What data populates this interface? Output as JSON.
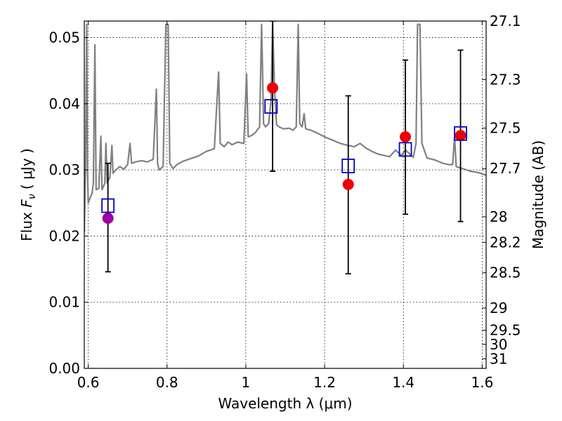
{
  "chart_data": {
    "type": "scatter",
    "xlabel": "Wavelength  λ (μm)",
    "ylabel_prefix": "Flux  ",
    "ylabel_symbol": "F",
    "ylabel_sub": "ν",
    "ylabel_units": "  ( μJy )",
    "y2label": "Magnitude (AB)",
    "xlim": [
      0.59,
      1.61
    ],
    "ylim": [
      0.0,
      0.0525
    ],
    "grid": true,
    "x_ticks": [
      {
        "v": 0.6,
        "label": "0.6"
      },
      {
        "v": 0.8,
        "label": "0.8"
      },
      {
        "v": 1.0,
        "label": "1"
      },
      {
        "v": 1.2,
        "label": "1.2"
      },
      {
        "v": 1.4,
        "label": "1.4"
      },
      {
        "v": 1.6,
        "label": "1.6"
      }
    ],
    "y_ticks": [
      {
        "v": 0.0,
        "label": "0.00"
      },
      {
        "v": 0.01,
        "label": "0.01"
      },
      {
        "v": 0.02,
        "label": "0.02"
      },
      {
        "v": 0.03,
        "label": "0.03"
      },
      {
        "v": 0.04,
        "label": "0.04"
      },
      {
        "v": 0.05,
        "label": "0.05"
      }
    ],
    "mag_ticks": [
      {
        "v": 27.1,
        "label": "27.1"
      },
      {
        "v": 27.3,
        "label": "27.3"
      },
      {
        "v": 27.5,
        "label": "27.5"
      },
      {
        "v": 27.7,
        "label": "27.7"
      },
      {
        "v": 28.0,
        "label": "28"
      },
      {
        "v": 28.2,
        "label": "28.2"
      },
      {
        "v": 28.5,
        "label": "28.5"
      },
      {
        "v": 29.0,
        "label": "29"
      },
      {
        "v": 29.5,
        "label": "29.5"
      },
      {
        "v": 30.0,
        "label": "30"
      },
      {
        "v": 31.0,
        "label": "31"
      }
    ],
    "observed": [
      {
        "x": 0.65,
        "y": 0.0227,
        "err": [
          0.0146,
          0.031
        ],
        "color": "#a000a0"
      },
      {
        "x": 1.068,
        "y": 0.0424,
        "err": [
          0.0298,
          0.0525
        ],
        "color": "#ee0000"
      },
      {
        "x": 1.26,
        "y": 0.0278,
        "err": [
          0.0143,
          0.0412
        ],
        "color": "#ee0000"
      },
      {
        "x": 1.405,
        "y": 0.035,
        "err": [
          0.0233,
          0.0466
        ],
        "color": "#ee0000"
      },
      {
        "x": 1.545,
        "y": 0.0352,
        "err": [
          0.0222,
          0.0481
        ],
        "color": "#ee0000"
      }
    ],
    "model": [
      {
        "x": 0.65,
        "y": 0.0246
      },
      {
        "x": 1.064,
        "y": 0.0396
      },
      {
        "x": 1.26,
        "y": 0.0306
      },
      {
        "x": 1.405,
        "y": 0.0331
      },
      {
        "x": 1.545,
        "y": 0.0355
      }
    ],
    "spectrum": {
      "color": "#808080",
      "points": [
        [
          0.59,
          0.0205
        ],
        [
          0.593,
          0.03
        ],
        [
          0.596,
          0.052
        ],
        [
          0.598,
          0.03
        ],
        [
          0.6,
          0.025
        ],
        [
          0.605,
          0.0258
        ],
        [
          0.61,
          0.0265
        ],
        [
          0.613,
          0.028
        ],
        [
          0.617,
          0.0489
        ],
        [
          0.62,
          0.027
        ],
        [
          0.627,
          0.0272
        ],
        [
          0.632,
          0.0351
        ],
        [
          0.635,
          0.027
        ],
        [
          0.642,
          0.028
        ],
        [
          0.645,
          0.034
        ],
        [
          0.648,
          0.028
        ],
        [
          0.655,
          0.0289
        ],
        [
          0.66,
          0.0337
        ],
        [
          0.663,
          0.0295
        ],
        [
          0.67,
          0.03
        ],
        [
          0.68,
          0.0305
        ],
        [
          0.69,
          0.0301
        ],
        [
          0.7,
          0.0308
        ],
        [
          0.706,
          0.034
        ],
        [
          0.71,
          0.031
        ],
        [
          0.72,
          0.0312
        ],
        [
          0.735,
          0.0314
        ],
        [
          0.75,
          0.0312
        ],
        [
          0.765,
          0.0316
        ],
        [
          0.773,
          0.0422
        ],
        [
          0.776,
          0.031
        ],
        [
          0.78,
          0.03
        ],
        [
          0.79,
          0.0305
        ],
        [
          0.797,
          0.052
        ],
        [
          0.803,
          0.052
        ],
        [
          0.807,
          0.031
        ],
        [
          0.815,
          0.0302
        ],
        [
          0.825,
          0.0308
        ],
        [
          0.84,
          0.0313
        ],
        [
          0.86,
          0.0317
        ],
        [
          0.88,
          0.0321
        ],
        [
          0.9,
          0.0328
        ],
        [
          0.92,
          0.0332
        ],
        [
          0.931,
          0.0448
        ],
        [
          0.935,
          0.034
        ],
        [
          0.945,
          0.0335
        ],
        [
          0.955,
          0.0342
        ],
        [
          0.965,
          0.0338
        ],
        [
          0.98,
          0.0342
        ],
        [
          0.995,
          0.034
        ],
        [
          1.002,
          0.0445
        ],
        [
          1.006,
          0.035
        ],
        [
          1.015,
          0.0352
        ],
        [
          1.025,
          0.0357
        ],
        [
          1.035,
          0.0365
        ],
        [
          1.04,
          0.052
        ],
        [
          1.045,
          0.037
        ],
        [
          1.05,
          0.0365
        ],
        [
          1.058,
          0.037
        ],
        [
          1.064,
          0.0405
        ],
        [
          1.068,
          0.052
        ],
        [
          1.073,
          0.042
        ],
        [
          1.078,
          0.0368
        ],
        [
          1.085,
          0.0365
        ],
        [
          1.095,
          0.0362
        ],
        [
          1.11,
          0.0363
        ],
        [
          1.12,
          0.036
        ],
        [
          1.128,
          0.0365
        ],
        [
          1.133,
          0.052
        ],
        [
          1.137,
          0.037
        ],
        [
          1.143,
          0.0365
        ],
        [
          1.148,
          0.0385
        ],
        [
          1.152,
          0.0362
        ],
        [
          1.165,
          0.036
        ],
        [
          1.18,
          0.0356
        ],
        [
          1.2,
          0.035
        ],
        [
          1.22,
          0.0345
        ],
        [
          1.24,
          0.034
        ],
        [
          1.26,
          0.0337
        ],
        [
          1.275,
          0.0335
        ],
        [
          1.29,
          0.034
        ],
        [
          1.305,
          0.0333
        ],
        [
          1.32,
          0.0328
        ],
        [
          1.335,
          0.0324
        ],
        [
          1.35,
          0.0322
        ],
        [
          1.365,
          0.032
        ],
        [
          1.38,
          0.033
        ],
        [
          1.395,
          0.0322
        ],
        [
          1.405,
          0.033
        ],
        [
          1.415,
          0.0325
        ],
        [
          1.425,
          0.0319
        ],
        [
          1.432,
          0.034
        ],
        [
          1.436,
          0.052
        ],
        [
          1.442,
          0.052
        ],
        [
          1.447,
          0.034
        ],
        [
          1.46,
          0.0318
        ],
        [
          1.48,
          0.0315
        ],
        [
          1.5,
          0.031
        ],
        [
          1.515,
          0.0308
        ],
        [
          1.525,
          0.0308
        ],
        [
          1.53,
          0.035
        ],
        [
          1.534,
          0.0305
        ],
        [
          1.55,
          0.0302
        ],
        [
          1.57,
          0.0298
        ],
        [
          1.59,
          0.0296
        ],
        [
          1.61,
          0.0292
        ]
      ]
    }
  }
}
